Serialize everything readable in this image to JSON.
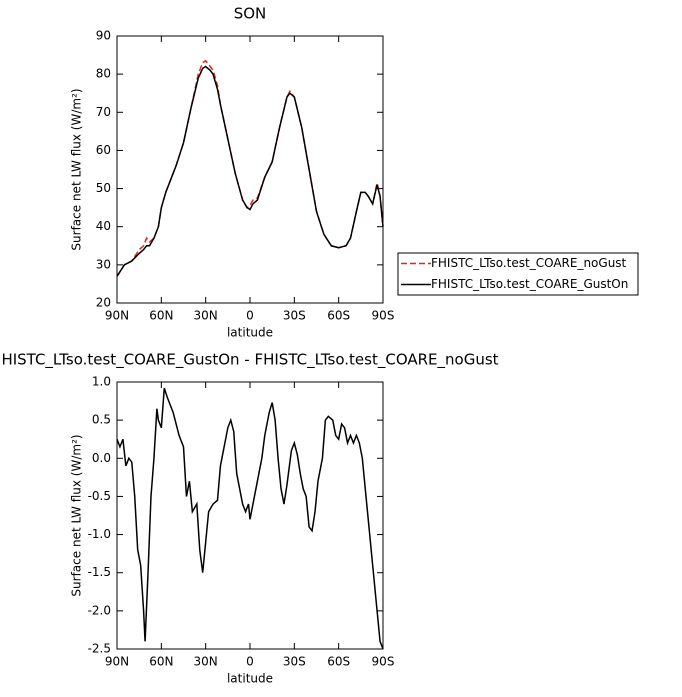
{
  "chart_data": [
    {
      "type": "line",
      "title": "SON",
      "xlabel": "latitude",
      "ylabel": "Surface net LW flux (W/m²)",
      "x": [
        90,
        85,
        80,
        75,
        72,
        70,
        68,
        65,
        62,
        60,
        57,
        55,
        52,
        50,
        45,
        40,
        35,
        32,
        30,
        27,
        25,
        22,
        20,
        15,
        10,
        5,
        2,
        0,
        -2,
        -5,
        -10,
        -15,
        -20,
        -25,
        -27,
        -30,
        -35,
        -40,
        -45,
        -50,
        -55,
        -60,
        -65,
        -68,
        -72,
        -75,
        -78,
        -80,
        -83,
        -86,
        -88,
        -90
      ],
      "series": [
        {
          "name": "FHISTC_LTso.test_COARE_noGust",
          "color": "#e8231a",
          "dash": "dashed",
          "values": [
            27,
            30,
            31,
            34,
            35,
            37,
            36,
            37,
            40,
            45,
            49,
            51,
            54,
            56,
            62,
            71,
            80,
            83,
            83.5,
            82,
            81,
            77,
            72,
            63,
            54,
            47,
            45,
            45.5,
            47,
            47.5,
            53,
            57,
            66,
            74,
            75.5,
            74,
            66,
            55,
            44,
            38,
            35,
            34.5,
            35,
            37,
            44,
            49,
            49,
            48,
            46,
            51.5,
            48,
            40
          ]
        },
        {
          "name": "FHISTC_LTso.test_COARE_GustOn",
          "color": "#000000",
          "dash": "solid",
          "values": [
            27,
            30,
            31,
            33,
            34,
            35,
            35,
            37,
            40,
            45,
            49,
            51,
            54,
            56,
            62,
            71,
            79,
            81.5,
            82,
            81,
            80,
            76,
            72,
            63,
            54,
            47,
            45,
            44.5,
            46,
            47,
            53,
            57,
            66,
            74,
            75,
            74,
            66,
            55,
            44,
            38,
            35,
            34.5,
            35,
            37,
            44,
            49,
            49,
            48,
            46,
            51,
            48,
            40
          ]
        }
      ],
      "xlim": [
        90,
        -90
      ],
      "xticks": [
        {
          "value": 90,
          "label": "90N"
        },
        {
          "value": 60,
          "label": "60N"
        },
        {
          "value": 30,
          "label": "30N"
        },
        0,
        {
          "value": -30,
          "label": "30S"
        },
        {
          "value": -60,
          "label": "60S"
        },
        {
          "value": -90,
          "label": "90S"
        }
      ],
      "ylim": [
        20,
        90
      ],
      "yticks": [
        20,
        30,
        40,
        50,
        60,
        70,
        80,
        90
      ],
      "legend": "right"
    },
    {
      "type": "line",
      "title": "HISTC_LTso.test_COARE_GustOn - FHISTC_LTso.test_COARE_noGust",
      "xlabel": "latitude",
      "ylabel": "Surface net LW flux (W/m²)",
      "x": [
        90,
        88,
        86,
        84,
        82,
        80,
        78,
        76,
        74,
        72,
        71,
        69,
        67,
        65,
        63,
        62,
        60,
        58,
        56,
        54,
        52,
        48,
        45,
        43,
        41,
        39,
        36,
        34,
        32,
        30,
        28,
        25,
        22,
        20,
        17,
        15,
        13,
        11,
        9,
        7,
        5,
        3,
        1,
        0,
        -2,
        -5,
        -8,
        -10,
        -13,
        -15,
        -17,
        -19,
        -21,
        -23,
        -25,
        -28,
        -30,
        -32,
        -34,
        -36,
        -38,
        -40,
        -42,
        -44,
        -46,
        -49,
        -51,
        -53,
        -56,
        -58,
        -60,
        -62,
        -64,
        -66,
        -68,
        -70,
        -72,
        -74,
        -76,
        -80,
        -84,
        -88,
        -90
      ],
      "values": [
        0.25,
        0.15,
        0.25,
        -0.1,
        0.0,
        -0.05,
        -0.5,
        -1.2,
        -1.4,
        -2.0,
        -2.4,
        -1.5,
        -0.5,
        0.0,
        0.65,
        0.5,
        0.4,
        0.92,
        0.8,
        0.7,
        0.6,
        0.3,
        0.15,
        -0.5,
        -0.3,
        -0.7,
        -0.6,
        -1.2,
        -1.5,
        -1.1,
        -0.7,
        -0.6,
        -0.55,
        -0.1,
        0.2,
        0.4,
        0.5,
        0.35,
        -0.2,
        -0.4,
        -0.6,
        -0.7,
        -0.6,
        -0.8,
        -0.6,
        -0.3,
        0.0,
        0.3,
        0.6,
        0.73,
        0.5,
        0.0,
        -0.4,
        -0.6,
        -0.35,
        0.1,
        0.2,
        0.05,
        -0.2,
        -0.4,
        -0.5,
        -0.9,
        -0.95,
        -0.7,
        -0.3,
        0.0,
        0.5,
        0.55,
        0.5,
        0.3,
        0.25,
        0.45,
        0.4,
        0.2,
        0.3,
        0.2,
        0.3,
        0.2,
        0.0,
        -0.8,
        -1.6,
        -2.4,
        -2.5
      ],
      "color": "#000000",
      "xlim": [
        90,
        -90
      ],
      "xticks": [
        {
          "value": 90,
          "label": "90N"
        },
        {
          "value": 60,
          "label": "60N"
        },
        {
          "value": 30,
          "label": "30N"
        },
        0,
        {
          "value": -30,
          "label": "30S"
        },
        {
          "value": -60,
          "label": "60S"
        },
        {
          "value": -90,
          "label": "90S"
        }
      ],
      "ylim": [
        -2.5,
        1.0
      ],
      "yticks": [
        -2.5,
        {
          "value": -2.0,
          "label": "-2.0"
        },
        -1.5,
        {
          "value": -1.0,
          "label": "-1.0"
        },
        -0.5,
        {
          "value": 0.0,
          "label": "0.0"
        },
        0.5,
        {
          "value": 1.0,
          "label": "1.0"
        }
      ]
    }
  ]
}
